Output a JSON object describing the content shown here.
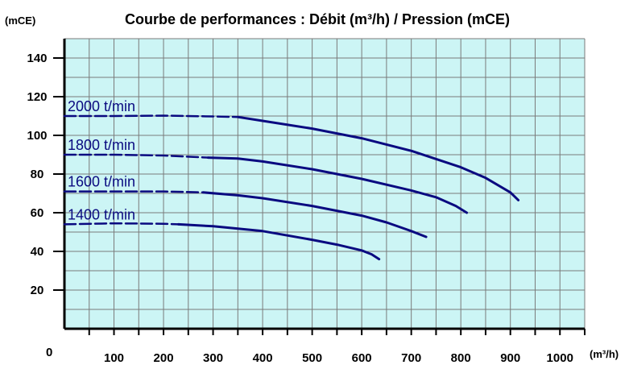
{
  "chart_data": {
    "type": "line",
    "title": "Courbe de performances : Débit (m³/h) / Pression (mCE)",
    "ylabel": "(mCE)",
    "xlabel": "(m³/h)",
    "origin_label": "0",
    "xlim": [
      0,
      1050
    ],
    "ylim": [
      0,
      150
    ],
    "x_ticks": [
      100,
      200,
      300,
      400,
      500,
      600,
      700,
      800,
      900,
      1000
    ],
    "x_tick_labels": [
      "100",
      "200",
      "300",
      "400",
      "500",
      "600",
      "700",
      "800",
      "900",
      "1000"
    ],
    "y_ticks": [
      20,
      40,
      60,
      80,
      100,
      120,
      140
    ],
    "y_tick_labels": [
      "20",
      "40",
      "60",
      "80",
      "100",
      "120",
      "140"
    ],
    "grid": true,
    "colors": {
      "plot_bg": "#ccf5f5",
      "grid": "#7a7a7a",
      "curve": "#0a0a80",
      "axis": "#000000"
    },
    "series": [
      {
        "name": "2000 t/min",
        "dashed_until": 350,
        "points": [
          [
            0,
            110
          ],
          [
            100,
            110
          ],
          [
            200,
            110.2
          ],
          [
            300,
            109.8
          ],
          [
            350,
            109.5
          ],
          [
            400,
            107.5
          ],
          [
            500,
            103.5
          ],
          [
            600,
            98.5
          ],
          [
            700,
            92
          ],
          [
            800,
            83.5
          ],
          [
            850,
            78
          ],
          [
            900,
            70.5
          ],
          [
            910,
            68
          ],
          [
            916,
            66.5
          ]
        ]
      },
      {
        "name": "1800 t/min",
        "dashed_until": 290,
        "points": [
          [
            0,
            90
          ],
          [
            100,
            90
          ],
          [
            200,
            89.6
          ],
          [
            290,
            88.5
          ],
          [
            350,
            88
          ],
          [
            400,
            86.5
          ],
          [
            500,
            82.5
          ],
          [
            600,
            77.5
          ],
          [
            700,
            71.5
          ],
          [
            750,
            68
          ],
          [
            790,
            63.5
          ],
          [
            812,
            60
          ]
        ]
      },
      {
        "name": "1600 t/min",
        "dashed_until": 280,
        "points": [
          [
            0,
            71
          ],
          [
            100,
            71
          ],
          [
            200,
            71
          ],
          [
            280,
            70.5
          ],
          [
            350,
            69
          ],
          [
            400,
            67.5
          ],
          [
            500,
            63.5
          ],
          [
            600,
            58.5
          ],
          [
            650,
            55
          ],
          [
            700,
            50.5
          ],
          [
            730,
            47.5
          ]
        ]
      },
      {
        "name": "1400 t/min",
        "dashed_until": 230,
        "points": [
          [
            0,
            54
          ],
          [
            100,
            54.5
          ],
          [
            200,
            54.3
          ],
          [
            230,
            54
          ],
          [
            300,
            53
          ],
          [
            400,
            50.5
          ],
          [
            500,
            46
          ],
          [
            550,
            43.5
          ],
          [
            600,
            40.5
          ],
          [
            620,
            38.5
          ],
          [
            635,
            36
          ]
        ]
      }
    ]
  }
}
